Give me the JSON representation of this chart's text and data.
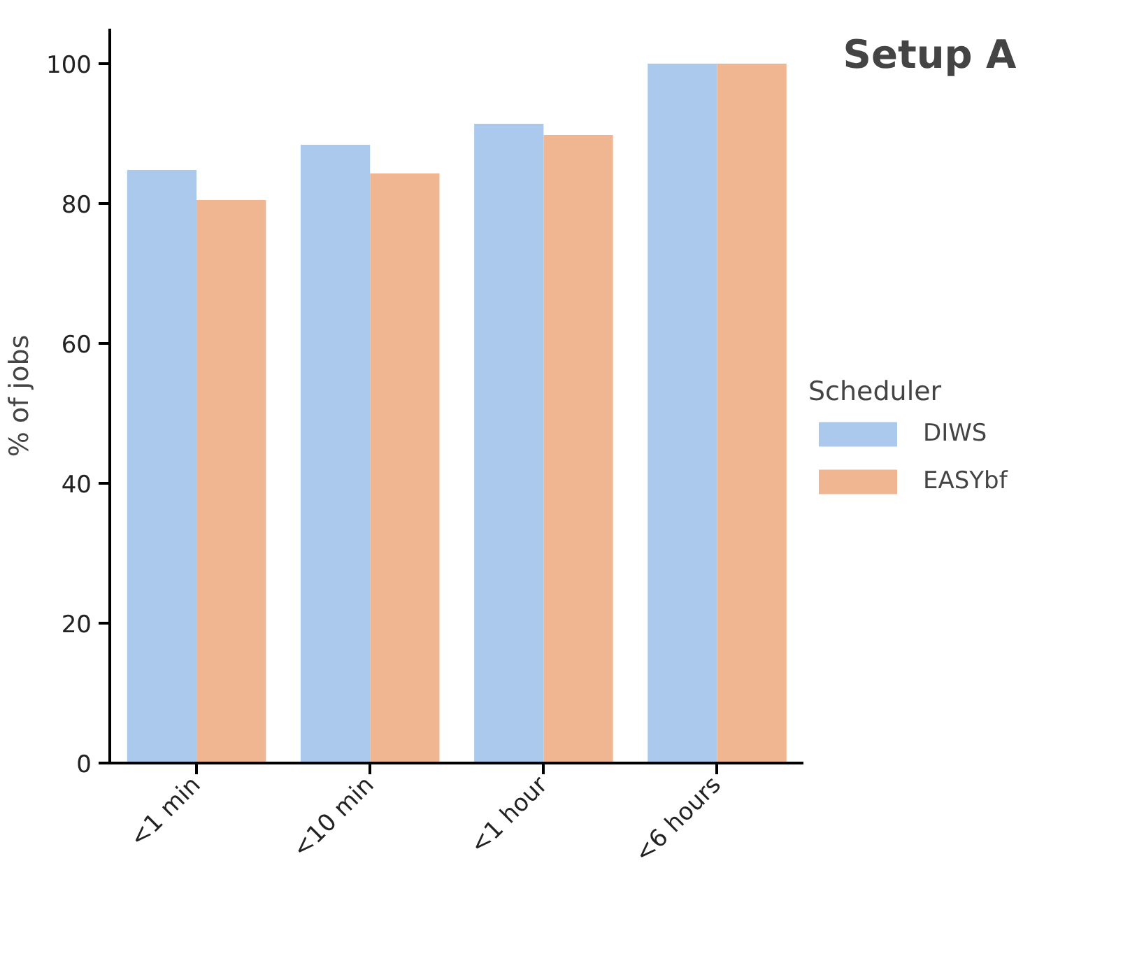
{
  "chart_data": {
    "type": "bar",
    "title": "Setup A",
    "ylabel": "% of jobs",
    "legend_title": "Scheduler",
    "categories": [
      "<1 min",
      "<10 min",
      "<1 hour",
      "<6 hours"
    ],
    "series": [
      {
        "name": "DIWS",
        "color": "#abc9ec",
        "values": [
          84.8,
          88.4,
          91.4,
          100
        ]
      },
      {
        "name": "EASYbf",
        "color": "#f0b691",
        "values": [
          80.5,
          84.3,
          89.8,
          100
        ]
      }
    ],
    "ylim": [
      0,
      105
    ],
    "yticks": [
      0,
      20,
      40,
      60,
      80,
      100
    ],
    "grid": false,
    "legend": "right"
  }
}
